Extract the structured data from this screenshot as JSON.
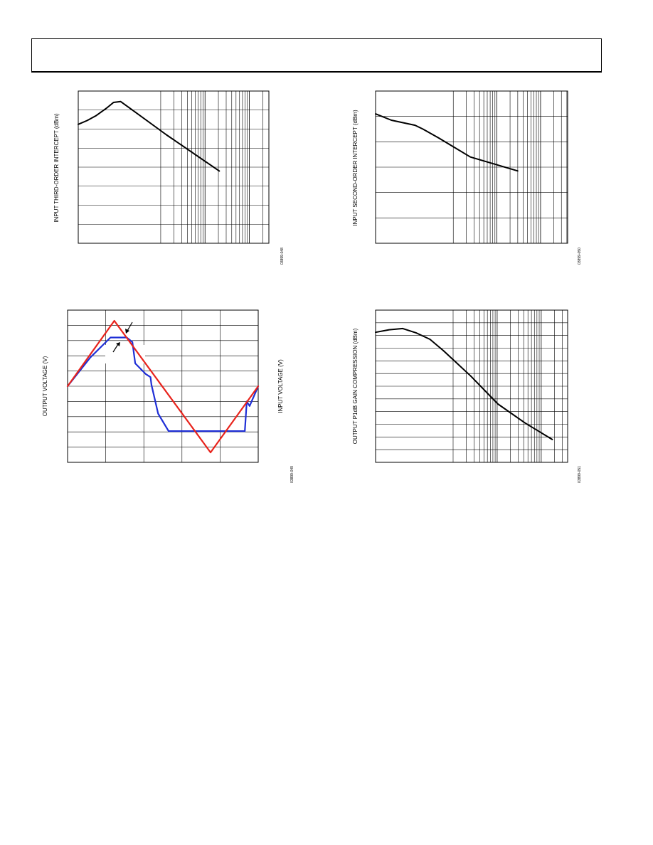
{
  "colors": {
    "grid": "#000000",
    "curve": "#000000",
    "output_trace": "#1f2fd6",
    "input_trace": "#e8231c"
  },
  "chart_data": [
    {
      "type": "line",
      "ylabel": "INPUT THIRD-ORDER INTERCEPT (dBm)",
      "figure_id": "03899-048",
      "x_scale": "log",
      "series": [
        {
          "x": [
            1,
            1.5,
            2,
            2.6,
            3,
            3.4,
            4,
            6,
            9
          ],
          "y": [
            6.25,
            6.45,
            6.7,
            7.1,
            7.4,
            7.45,
            7.05,
            5.7,
            3.8
          ]
        }
      ]
    },
    {
      "type": "line",
      "ylabel": "INPUT SECOND-ORDER INTERCEPT (dBm)",
      "figure_id": "03899-050",
      "x_scale": "log",
      "series": [
        {
          "x": [
            1,
            2,
            3.5,
            4,
            5,
            7,
            10
          ],
          "y": [
            5.1,
            4.85,
            4.65,
            4.5,
            4.15,
            3.4,
            2.85
          ]
        }
      ]
    },
    {
      "type": "line",
      "ylabel": "OUTPUT VOLTAGE (V)",
      "ylabel_right": "INPUT VOLTAGE (V)",
      "figure_id": "03899-049",
      "series": [
        {
          "color": "#1f2fd6",
          "x": [
            0,
            1.2,
            2.25,
            3.1,
            3.4,
            3.55,
            4.1,
            4.35,
            4.4,
            4.75,
            5.3,
            6.2,
            7.2,
            9.3,
            9.4,
            9.55,
            10
          ],
          "y": [
            5,
            6.9,
            8.2,
            8.2,
            7.9,
            6.5,
            5.8,
            5.6,
            5.1,
            3.2,
            2.05,
            2.05,
            2.05,
            2.05,
            4.0,
            3.7,
            5.0
          ]
        },
        {
          "color": "#e8231c",
          "x": [
            0,
            2.45,
            7.5,
            10
          ],
          "y": [
            5,
            9.3,
            0.65,
            5
          ]
        }
      ]
    },
    {
      "type": "line",
      "ylabel": "OUTPUT P1dB GAIN COMPRESSION (dBm)",
      "figure_id": "03899-051",
      "x_scale": "log",
      "series": [
        {
          "x": [
            1,
            2,
            3,
            4,
            5,
            6,
            8,
            10,
            12,
            14
          ],
          "y": [
            10.25,
            10.45,
            10.55,
            10.2,
            9.7,
            8.8,
            6.8,
            4.6,
            3.1,
            1.8
          ]
        }
      ]
    }
  ]
}
